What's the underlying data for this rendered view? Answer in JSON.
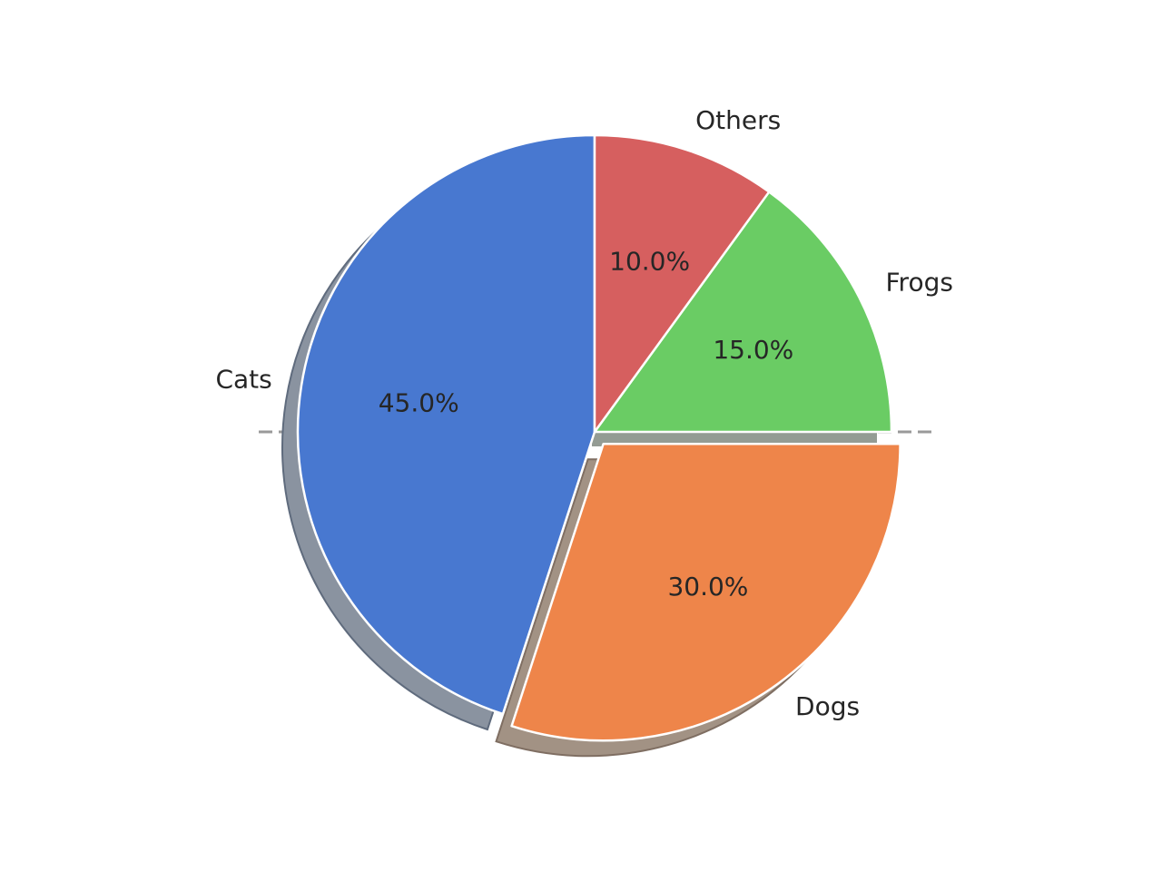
{
  "chart_data": {
    "type": "pie",
    "title": "",
    "categories": [
      "Cats",
      "Dogs",
      "Frogs",
      "Others"
    ],
    "values": [
      45.0,
      30.0,
      15.0,
      10.0
    ],
    "autopct_labels": [
      "45.0%",
      "30.0%",
      "15.0%",
      "10.0%"
    ],
    "colors": [
      "#4878d0",
      "#ee854a",
      "#6acc64",
      "#d65f5f"
    ],
    "shadow_colors": [
      "#8a93a0",
      "#a29284"
    ],
    "explode": [
      0,
      0.05,
      0,
      0
    ],
    "start_angle": 90,
    "direction": "counterclockwise",
    "shadow": true,
    "reference_line": {
      "style": "dashed",
      "color": "#999999"
    }
  }
}
